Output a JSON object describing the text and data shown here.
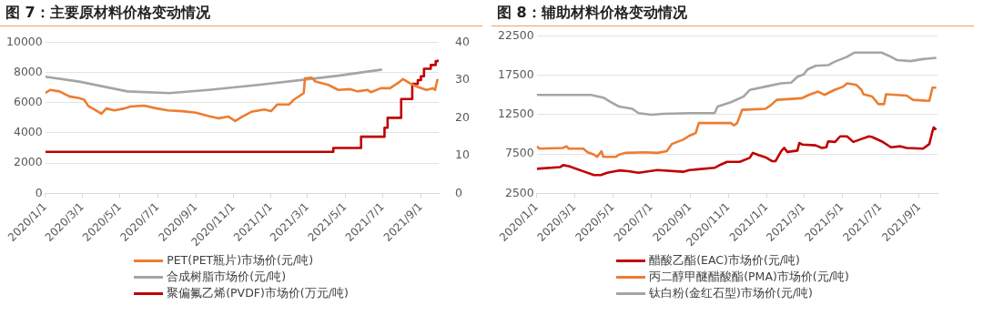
{
  "chart_data": [
    {
      "type": "line",
      "title": "图 7：主要原材料价格变动情况",
      "xlim": [
        "2020-01-01",
        "2021-09-30"
      ],
      "xticks": [
        {
          "value": "2020-01-01",
          "label": "2020/1/1"
        },
        {
          "value": "2020-03-01",
          "label": "2020/3/1"
        },
        {
          "value": "2020-05-01",
          "label": "2020/5/1"
        },
        {
          "value": "2020-07-01",
          "label": "2020/7/1"
        },
        {
          "value": "2020-09-01",
          "label": "2020/9/1"
        },
        {
          "value": "2020-11-01",
          "label": "2020/11/1"
        },
        {
          "value": "2021-01-01",
          "label": "2021/1/1"
        },
        {
          "value": "2021-03-01",
          "label": "2021/3/1"
        },
        {
          "value": "2021-05-01",
          "label": "2021/5/1"
        },
        {
          "value": "2021-07-01",
          "label": "2021/7/1"
        },
        {
          "value": "2021-09-01",
          "label": "2021/9/1"
        }
      ],
      "ylim": [
        0,
        10000
      ],
      "yticks": [
        0,
        2000,
        4000,
        6000,
        8000,
        10000
      ],
      "y2lim": [
        0,
        40
      ],
      "y2ticks": [
        0,
        10,
        20,
        30,
        40
      ],
      "grid": "y",
      "legend": "bottom",
      "marker": "none",
      "series": [
        {
          "name": "PET(PET瓶片)市场价(元/吨)",
          "color": "#ed7d31",
          "x": [
            "2020-01-01",
            "2020-01-09",
            "2020-01-24",
            "2020-02-09",
            "2020-02-25",
            "2020-03-04",
            "2020-03-11",
            "2020-03-21",
            "2020-04-01",
            "2020-04-09",
            "2020-04-22",
            "2020-05-08",
            "2020-05-18",
            "2020-06-09",
            "2020-06-30",
            "2020-07-18",
            "2020-08-11",
            "2020-09-01",
            "2020-09-22",
            "2020-10-08",
            "2020-10-24",
            "2020-11-04",
            "2020-11-14",
            "2020-11-30",
            "2020-12-21",
            "2021-01-01",
            "2021-01-11",
            "2021-01-30",
            "2021-02-07",
            "2021-02-23",
            "2021-02-25",
            "2021-03-08",
            "2021-03-14",
            "2021-04-04",
            "2021-04-20",
            "2021-05-10",
            "2021-05-21",
            "2021-06-06",
            "2021-06-12",
            "2021-06-28",
            "2021-07-13",
            "2021-07-29",
            "2021-08-03",
            "2021-08-14",
            "2021-08-25",
            "2021-09-10",
            "2021-09-20",
            "2021-09-24",
            "2021-09-28"
          ],
          "values": [
            6640,
            6850,
            6750,
            6420,
            6310,
            6200,
            5770,
            5550,
            5270,
            5620,
            5490,
            5620,
            5750,
            5810,
            5620,
            5490,
            5440,
            5340,
            5120,
            4970,
            5080,
            4790,
            5050,
            5400,
            5550,
            5440,
            5880,
            5880,
            6200,
            6640,
            7610,
            7660,
            7400,
            7180,
            6850,
            6900,
            6750,
            6850,
            6700,
            6960,
            6960,
            7400,
            7570,
            7290,
            7070,
            6850,
            6960,
            6850,
            7570
          ]
        },
        {
          "name": "合成树脂市场价(元/吨)",
          "color": "#a5a5a5",
          "x": [
            "2020-01-01",
            "2020-02-25",
            "2020-05-13",
            "2020-07-20",
            "2020-09-22",
            "2020-12-11",
            "2021-03-01",
            "2021-04-20",
            "2021-06-30"
          ],
          "values": [
            7720,
            7400,
            6750,
            6640,
            6850,
            7180,
            7550,
            7790,
            8200
          ]
        },
        {
          "name": "聚偏氟乙烯(PVDF)市场价(万元/吨)",
          "color": "#c00000",
          "type": "step",
          "axis": "y2",
          "x": [
            "2020-01-01",
            "2021-04-12",
            "2021-05-27",
            "2021-07-04",
            "2021-07-09",
            "2021-07-31",
            "2021-08-18",
            "2021-08-27",
            "2021-09-01",
            "2021-09-06",
            "2021-09-17",
            "2021-09-25",
            "2021-09-28"
          ],
          "values": [
            11,
            12,
            15,
            17.4,
            20,
            25,
            29,
            30,
            31,
            33,
            34,
            35,
            35.4
          ]
        }
      ]
    },
    {
      "type": "line",
      "title": "图 8：辅助材料价格变动情况",
      "xlim": [
        "2020-01-01",
        "2021-09-30"
      ],
      "xticks": [
        {
          "value": "2020-01-01",
          "label": "2020/1/1"
        },
        {
          "value": "2020-03-01",
          "label": "2020/3/1"
        },
        {
          "value": "2020-05-01",
          "label": "2020/5/1"
        },
        {
          "value": "2020-07-01",
          "label": "2020/7/1"
        },
        {
          "value": "2020-09-01",
          "label": "2020/9/1"
        },
        {
          "value": "2020-11-01",
          "label": "2020/11/1"
        },
        {
          "value": "2021-01-01",
          "label": "2021/1/1"
        },
        {
          "value": "2021-03-01",
          "label": "2021/3/1"
        },
        {
          "value": "2021-05-01",
          "label": "2021/5/1"
        },
        {
          "value": "2021-07-01",
          "label": "2021/7/1"
        },
        {
          "value": "2021-09-01",
          "label": "2021/9/1"
        }
      ],
      "ylim": [
        2500,
        22500
      ],
      "yticks": [
        2500,
        7500,
        12500,
        17500,
        22500
      ],
      "grid": "y",
      "legend": "bottom",
      "marker": "none",
      "series": [
        {
          "name": "醋酸乙酯(EAC)市场价(元/吨)",
          "color": "#c00000",
          "x": [
            "2020-01-01",
            "2020-02-07",
            "2020-02-12",
            "2020-02-21",
            "2020-03-17",
            "2020-04-01",
            "2020-04-12",
            "2020-04-22",
            "2020-05-11",
            "2020-05-26",
            "2020-06-11",
            "2020-07-11",
            "2020-08-21",
            "2020-08-31",
            "2020-10-10",
            "2020-10-20",
            "2020-10-30",
            "2020-11-19",
            "2020-12-05",
            "2020-12-10",
            "2020-12-20",
            "2020-12-30",
            "2021-01-10",
            "2021-01-15",
            "2021-01-24",
            "2021-01-29",
            "2021-02-03",
            "2021-02-19",
            "2021-02-22",
            "2021-02-27",
            "2021-03-20",
            "2021-03-30",
            "2021-04-06",
            "2021-04-09",
            "2021-04-20",
            "2021-04-28",
            "2021-05-09",
            "2021-05-19",
            "2021-05-29",
            "2021-06-13",
            "2021-06-18",
            "2021-07-03",
            "2021-07-18",
            "2021-08-02",
            "2021-08-12",
            "2021-09-07",
            "2021-09-17",
            "2021-09-22",
            "2021-09-24",
            "2021-09-28"
          ],
          "values": [
            5620,
            5830,
            6080,
            5950,
            5240,
            4820,
            4820,
            5110,
            5410,
            5320,
            5110,
            5450,
            5240,
            5450,
            5740,
            6160,
            6500,
            6500,
            7010,
            7640,
            7340,
            7090,
            6580,
            6580,
            7850,
            8270,
            7760,
            7930,
            8900,
            8690,
            8600,
            8270,
            8350,
            9110,
            9030,
            9740,
            9740,
            9030,
            9320,
            9740,
            9660,
            9110,
            8350,
            8480,
            8270,
            8180,
            8770,
            10370,
            10880,
            10590
          ]
        },
        {
          "name": "丙二醇甲醚醋酸酯(PMA)市场价(元/吨)",
          "color": "#ed7d31",
          "x": [
            "2020-01-01",
            "2020-01-05",
            "2020-02-12",
            "2020-02-17",
            "2020-02-21",
            "2020-03-15",
            "2020-03-22",
            "2020-04-01",
            "2020-04-06",
            "2020-04-13",
            "2020-04-16",
            "2020-05-06",
            "2020-05-11",
            "2020-05-21",
            "2020-06-21",
            "2020-07-11",
            "2020-07-26",
            "2020-08-03",
            "2020-08-21",
            "2020-08-31",
            "2020-09-10",
            "2020-09-15",
            "2020-11-05",
            "2020-11-10",
            "2020-11-15",
            "2020-11-23",
            "2020-12-30",
            "2021-01-07",
            "2021-01-17",
            "2021-02-26",
            "2021-03-09",
            "2021-03-24",
            "2021-04-03",
            "2021-04-19",
            "2021-05-03",
            "2021-05-09",
            "2021-05-24",
            "2021-06-01",
            "2021-06-04",
            "2021-06-18",
            "2021-06-28",
            "2021-07-07",
            "2021-07-10",
            "2021-08-12",
            "2021-08-22",
            "2021-09-17",
            "2021-09-22",
            "2021-09-28"
          ],
          "values": [
            8480,
            8180,
            8270,
            8480,
            8180,
            8180,
            7720,
            7430,
            7130,
            7850,
            7130,
            7130,
            7430,
            7640,
            7720,
            7640,
            7850,
            8770,
            9320,
            9830,
            10160,
            11430,
            11430,
            11130,
            11430,
            13110,
            13240,
            13660,
            14380,
            14590,
            15010,
            15430,
            15010,
            15640,
            16060,
            16480,
            16270,
            15640,
            15090,
            14800,
            13830,
            13830,
            15090,
            14920,
            14380,
            14250,
            15930,
            15930
          ]
        },
        {
          "name": "钛白粉(金红石型)市场价(元/吨)",
          "color": "#a5a5a5",
          "x": [
            "2020-01-01",
            "2020-03-27",
            "2020-04-16",
            "2020-04-29",
            "2020-05-11",
            "2020-06-01",
            "2020-06-11",
            "2020-07-01",
            "2020-07-21",
            "2020-08-31",
            "2020-10-10",
            "2020-10-15",
            "2020-11-05",
            "2020-11-25",
            "2020-12-05",
            "2020-12-30",
            "2021-01-24",
            "2021-02-09",
            "2021-02-19",
            "2021-03-01",
            "2021-03-07",
            "2021-03-20",
            "2021-04-09",
            "2021-04-19",
            "2021-05-09",
            "2021-05-21",
            "2021-07-03",
            "2021-07-18",
            "2021-07-28",
            "2021-08-18",
            "2021-09-07",
            "2021-09-28"
          ],
          "values": [
            15000,
            15000,
            14670,
            14040,
            13530,
            13240,
            12690,
            12480,
            12610,
            12690,
            12690,
            13530,
            14080,
            14790,
            15640,
            16060,
            16480,
            16560,
            17320,
            17620,
            18250,
            18710,
            18790,
            19220,
            19850,
            20390,
            20390,
            19850,
            19430,
            19300,
            19560,
            19720
          ]
        }
      ]
    }
  ]
}
